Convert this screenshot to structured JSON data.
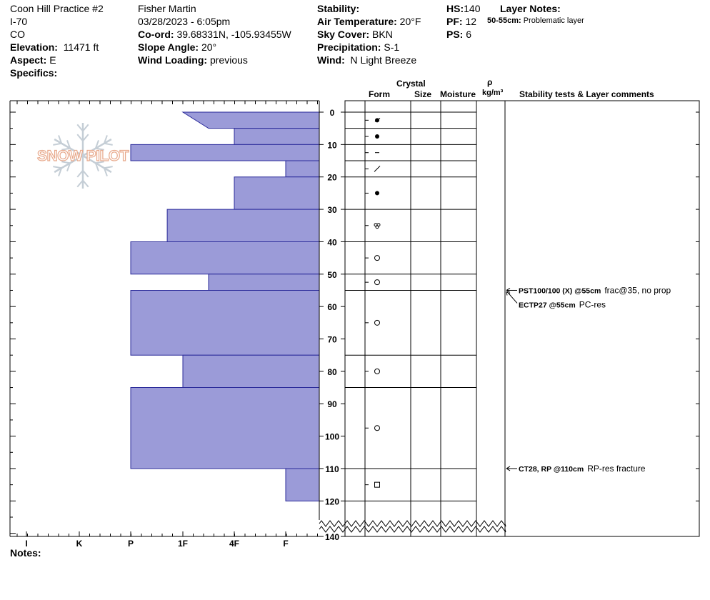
{
  "header": {
    "col1": {
      "title": "Coon Hill Practice #2",
      "road": "I-70",
      "state": "CO",
      "elevation_label": "Elevation:",
      "elevation_value": "11471 ft",
      "aspect_label": "Aspect:",
      "aspect_value": "E",
      "specifics_label": "Specifics:"
    },
    "col2": {
      "observer": "Fisher Martin",
      "datetime": "03/28/2023 - 6:05pm",
      "coord_label": "Co-ord:",
      "coord_value": "39.68331N, -105.93455W",
      "slope_label": "Slope Angle:",
      "slope_value": "20°",
      "wind_loading_label": "Wind Loading:",
      "wind_loading_value": "previous"
    },
    "col3": {
      "stability_label": "Stability:",
      "air_temp_label": "Air Temperature:",
      "air_temp_value": "20°F",
      "sky_label": "Sky Cover:",
      "sky_value": "BKN",
      "precip_label": "Precipitation:",
      "precip_value": "S-1",
      "wind_label": "Wind:",
      "wind_value": "N Light Breeze"
    },
    "col4": {
      "hs_label": "HS:",
      "hs_value": "140",
      "pf_label": "PF:",
      "pf_value": "12",
      "ps_label": "PS:",
      "ps_value": "6"
    },
    "layer_notes": {
      "label": "Layer Notes:",
      "note_range": "50-55cm:",
      "note_text": "Problematic layer"
    }
  },
  "watermark": "SNOW PILOT",
  "notes_label": "Notes:",
  "column_headers": {
    "crystal": "Crystal",
    "form": "Form",
    "size": "Size",
    "moisture": "Moisture",
    "rho": "ρ",
    "density_unit": "kg/m³",
    "stability": "Stability tests & Layer comments"
  },
  "colors": {
    "hardness_fill": "#9b9bd8",
    "hardness_stroke": "#2b2b9a",
    "test_text": "#000000"
  },
  "chart_data": {
    "type": "bar",
    "title": "",
    "xlabel": "",
    "ylabel": "",
    "depth_unit": "cm",
    "ylim": [
      0,
      140
    ],
    "y_ticks": [
      0,
      10,
      20,
      30,
      40,
      50,
      60,
      70,
      80,
      90,
      100,
      110,
      120,
      140
    ],
    "hardness_scale": [
      "I",
      "K",
      "P",
      "1F",
      "4F",
      "F"
    ],
    "hardness_index_note": "F=1, 4F=2, 1F=3, P=4, K=5, I=6",
    "layers": [
      {
        "top": 0,
        "bottom": 5,
        "hardness_top": 3,
        "hardness_bottom": 2.5,
        "form": "precip-particles"
      },
      {
        "top": 5,
        "bottom": 10,
        "hardness": 2,
        "form": "rounds"
      },
      {
        "top": 10,
        "bottom": 15,
        "hardness": 4,
        "form": "dash"
      },
      {
        "top": 15,
        "bottom": 20,
        "hardness": 1,
        "form": "slash"
      },
      {
        "top": 20,
        "bottom": 30,
        "hardness": 2,
        "form": "rounds"
      },
      {
        "top": 30,
        "bottom": 40,
        "hardness": 3.3,
        "form": "melt-forms"
      },
      {
        "top": 40,
        "bottom": 50,
        "hardness": 4,
        "form": "faceted-rounded"
      },
      {
        "top": 50,
        "bottom": 55,
        "hardness": 2.5,
        "form": "faceted-rounded"
      },
      {
        "top": 55,
        "bottom": 75,
        "hardness": 4,
        "form": "faceted-rounded"
      },
      {
        "top": 75,
        "bottom": 85,
        "hardness": 3,
        "form": "faceted-rounded"
      },
      {
        "top": 85,
        "bottom": 110,
        "hardness": 4,
        "form": "faceted-rounded"
      },
      {
        "top": 110,
        "bottom": 120,
        "hardness": 1,
        "form": "faceted"
      }
    ],
    "stability_tests": [
      {
        "depth": 55,
        "label": "PST100/100 (X) @55cm",
        "comment": "frac@35, no prop"
      },
      {
        "depth": 55,
        "label": "ECTP27 @55cm",
        "comment": "PC-res",
        "offset": 1
      },
      {
        "depth": 110,
        "label": "CT28, RP @110cm",
        "comment": "RP-res fracture"
      }
    ]
  }
}
